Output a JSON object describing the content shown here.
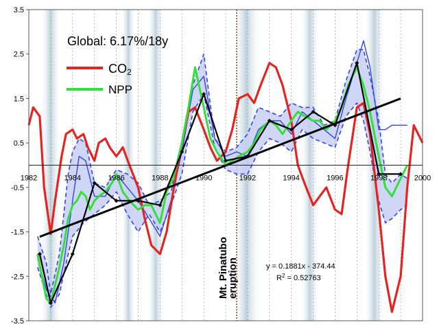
{
  "chart_data": {
    "type": "line",
    "title": "Global: 6.17%/18y",
    "xlabel": "",
    "ylabel": "",
    "xlim": [
      1982,
      2000
    ],
    "ylim": [
      -3.5,
      3.5
    ],
    "x_ticks": [
      1982,
      1984,
      1986,
      1988,
      1990,
      1992,
      1994,
      1996,
      1998,
      2000
    ],
    "y_ticks": [
      -3.5,
      -2.5,
      -1.5,
      -0.5,
      0.5,
      1.5,
      2.5,
      3.5
    ],
    "grid": "dotted vertical at years",
    "colors": {
      "co2": "#e8231f",
      "npp": "#33e03a",
      "band": "#3344ee",
      "fill": "#c8cff5",
      "annual": "#000000",
      "eruption": "#a0522d",
      "shading": "#b7ccd8"
    },
    "shaded_periods": [
      [
        1982.5,
        1983.5
      ],
      [
        1986.2,
        1986.9
      ],
      [
        1987.4,
        1988.2
      ],
      [
        1991.3,
        1992.6
      ],
      [
        1994.4,
        1995.3
      ],
      [
        1997.3,
        1998.3
      ]
    ],
    "legend": {
      "co2_label": "CO",
      "co2_sub": "2",
      "npp_label": "NPP",
      "position": "top-left"
    },
    "series": [
      {
        "name": "CO2",
        "x": [
          1982.0,
          1982.2,
          1982.5,
          1982.7,
          1983.0,
          1983.2,
          1983.5,
          1983.7,
          1984.0,
          1984.2,
          1984.5,
          1984.7,
          1985.0,
          1985.2,
          1985.5,
          1985.7,
          1986.0,
          1986.3,
          1986.6,
          1987.0,
          1987.3,
          1987.6,
          1988.0,
          1988.3,
          1988.6,
          1989.0,
          1989.3,
          1989.6,
          1990.0,
          1990.3,
          1990.6,
          1991.0,
          1991.3,
          1991.6,
          1992.0,
          1992.3,
          1992.6,
          1993.0,
          1993.3,
          1993.6,
          1994.0,
          1994.3,
          1994.6,
          1995.0,
          1995.3,
          1995.6,
          1996.0,
          1996.3,
          1996.6,
          1997.0,
          1997.3,
          1997.6,
          1998.0,
          1998.3,
          1998.6,
          1999.0,
          1999.3,
          1999.6,
          2000.0
        ],
        "values": [
          0.9,
          1.3,
          1.1,
          -0.5,
          -1.55,
          -0.8,
          0.2,
          0.7,
          0.8,
          0.6,
          0.7,
          0.4,
          0.1,
          0.5,
          0.6,
          0.4,
          0.2,
          0.4,
          0.0,
          -0.5,
          -1.2,
          -1.8,
          -2.0,
          -1.5,
          -0.6,
          0.5,
          1.2,
          1.3,
          0.8,
          0.4,
          0.1,
          0.3,
          0.8,
          1.5,
          1.6,
          1.4,
          1.8,
          2.3,
          2.2,
          1.8,
          1.0,
          0.0,
          -0.4,
          -0.9,
          -0.7,
          -0.5,
          -1.0,
          -1.1,
          0.0,
          1.3,
          1.4,
          0.7,
          -1.0,
          -2.5,
          -3.3,
          -2.5,
          -0.5,
          0.9,
          0.5
        ]
      },
      {
        "name": "NPP",
        "x": [
          1982.4,
          1982.6,
          1982.8,
          1983.0,
          1983.2,
          1983.4,
          1983.6,
          1983.8,
          1984.0,
          1984.2,
          1984.4,
          1984.6,
          1984.8,
          1985.0,
          1985.2,
          1985.5,
          1985.8,
          1986.0,
          1986.3,
          1986.6,
          1987.0,
          1987.3,
          1987.6,
          1988.0,
          1988.3,
          1988.6,
          1989.0,
          1989.3,
          1989.6,
          1990.0,
          1990.3,
          1990.6,
          1991.0,
          1991.3,
          1991.6,
          1992.0,
          1992.3,
          1992.6,
          1993.0,
          1993.3,
          1993.6,
          1994.0,
          1994.3,
          1994.6,
          1995.0,
          1995.3,
          1995.6,
          1996.0,
          1996.3,
          1996.6,
          1997.0,
          1997.3,
          1997.6,
          1998.0,
          1998.3,
          1998.6,
          1999.0,
          1999.3
        ],
        "values": [
          -2.0,
          -2.5,
          -3.0,
          -3.1,
          -2.7,
          -2.3,
          -1.8,
          -1.2,
          -0.9,
          -0.8,
          -0.6,
          -0.7,
          -1.0,
          -0.8,
          -0.7,
          -0.6,
          -0.4,
          -0.2,
          -0.6,
          -0.8,
          -1.0,
          -0.9,
          -0.9,
          -1.3,
          -0.6,
          -0.3,
          0.5,
          1.3,
          2.2,
          1.3,
          0.6,
          0.3,
          0.0,
          0.1,
          0.2,
          0.3,
          0.5,
          0.8,
          1.0,
          0.9,
          0.7,
          1.0,
          1.2,
          1.1,
          1.0,
          1.0,
          0.8,
          1.0,
          1.3,
          1.8,
          2.2,
          1.8,
          1.2,
          0.2,
          -0.5,
          -0.7,
          -0.3,
          0.0
        ]
      },
      {
        "name": "NPP upper",
        "x": [
          1982.4,
          1982.8,
          1983.0,
          1983.4,
          1983.8,
          1984.0,
          1984.3,
          1984.6,
          1985.0,
          1985.5,
          1986.0,
          1986.5,
          1987.0,
          1987.5,
          1988.0,
          1988.5,
          1989.0,
          1989.5,
          1990.0,
          1990.5,
          1991.0,
          1991.5,
          1992.0,
          1992.5,
          1993.0,
          1993.5,
          1994.0,
          1994.5,
          1995.0,
          1995.5,
          1996.0,
          1996.5,
          1997.0,
          1997.3,
          1997.6,
          1998.0,
          1998.3,
          1998.6,
          1999.0,
          1999.3
        ],
        "values": [
          -1.6,
          -2.2,
          -2.9,
          -2.0,
          -0.2,
          0.3,
          0.6,
          0.5,
          -0.4,
          -0.5,
          -0.1,
          -0.2,
          -0.4,
          -0.9,
          -0.8,
          -0.6,
          0.5,
          1.8,
          2.5,
          0.6,
          0.3,
          0.4,
          0.7,
          1.3,
          1.2,
          1.1,
          1.4,
          1.3,
          1.3,
          0.9,
          1.0,
          1.9,
          2.6,
          2.6,
          2.0,
          1.0,
          -0.2,
          -0.4,
          -0.2,
          -0.3
        ]
      },
      {
        "name": "NPP lower",
        "x": [
          1982.4,
          1982.8,
          1983.0,
          1983.4,
          1983.8,
          1984.0,
          1984.5,
          1985.0,
          1985.5,
          1986.0,
          1986.5,
          1987.0,
          1987.5,
          1988.0,
          1988.5,
          1989.0,
          1989.5,
          1990.0,
          1990.5,
          1991.0,
          1991.5,
          1992.0,
          1992.5,
          1993.0,
          1993.5,
          1994.0,
          1994.5,
          1995.0,
          1995.5,
          1996.0,
          1996.5,
          1997.0,
          1997.3,
          1997.6,
          1998.0,
          1998.3,
          1998.6,
          1999.0,
          1999.3
        ],
        "values": [
          -2.3,
          -2.9,
          -3.2,
          -2.9,
          -2.0,
          -1.6,
          -1.3,
          -1.1,
          -0.9,
          -0.6,
          -1.1,
          -1.5,
          -1.1,
          -1.5,
          -0.9,
          -0.2,
          1.2,
          1.6,
          0.4,
          -0.1,
          -0.2,
          -0.2,
          0.3,
          0.6,
          0.5,
          0.3,
          0.8,
          0.6,
          0.5,
          0.4,
          1.1,
          1.4,
          1.0,
          0.3,
          -0.8,
          -1.3,
          -1.2,
          -1.0,
          -0.9
        ]
      },
      {
        "name": "NPP ensemble",
        "x": [
          1982.4,
          1982.8,
          1983.2,
          1983.6,
          1984.0,
          1984.3,
          1984.6,
          1985.0,
          1985.5,
          1986.0,
          1986.5,
          1987.0,
          1987.5,
          1988.0,
          1988.5,
          1989.0,
          1989.5,
          1990.0,
          1990.5,
          1991.0,
          1991.5,
          1992.0,
          1992.5,
          1993.0,
          1993.5,
          1994.0,
          1994.5,
          1995.0,
          1995.5,
          1996.0,
          1996.5,
          1997.0,
          1997.3,
          1997.6,
          1998.0,
          1998.3,
          1998.6,
          1999.0,
          1999.3
        ],
        "values": [
          -2.1,
          -2.8,
          -3.1,
          -2.2,
          -0.8,
          0.2,
          0.1,
          -0.7,
          -0.7,
          -0.2,
          -0.5,
          -0.8,
          -1.2,
          -1.6,
          -0.8,
          0.3,
          1.7,
          2.0,
          0.6,
          0.2,
          0.3,
          0.2,
          0.8,
          1.0,
          1.0,
          0.7,
          1.2,
          1.0,
          0.8,
          0.6,
          1.5,
          2.3,
          2.8,
          2.2,
          0.8,
          0.8,
          0.9,
          0.9,
          0.9
        ]
      },
      {
        "name": "Annual",
        "x": [
          1982.5,
          1983.0,
          1984.0,
          1985.0,
          1986.0,
          1987.0,
          1988.0,
          1989.0,
          1990.0,
          1991.0,
          1992.0,
          1993.0,
          1994.0,
          1995.0,
          1996.0,
          1997.0,
          1998.0,
          1999.0
        ],
        "values": [
          -2.0,
          -3.1,
          -2.0,
          -0.4,
          -0.8,
          -0.8,
          -0.9,
          0.3,
          1.6,
          0.1,
          0.2,
          1.0,
          0.8,
          1.2,
          0.9,
          2.3,
          -0.2,
          -0.2
        ]
      },
      {
        "name": "Trend",
        "x": [
          1982.5,
          1999.0
        ],
        "values": [
          -1.61,
          1.5
        ]
      }
    ],
    "annotations": {
      "eruption_label": "Mt. Pinatubo",
      "eruption_label2": "eruption",
      "eruption_year": 1991.5,
      "equation": "y = 0.1881x - 374.44",
      "r2_prefix": "R",
      "r2_sup": "2",
      "r2_value": " = 0.52763"
    }
  }
}
